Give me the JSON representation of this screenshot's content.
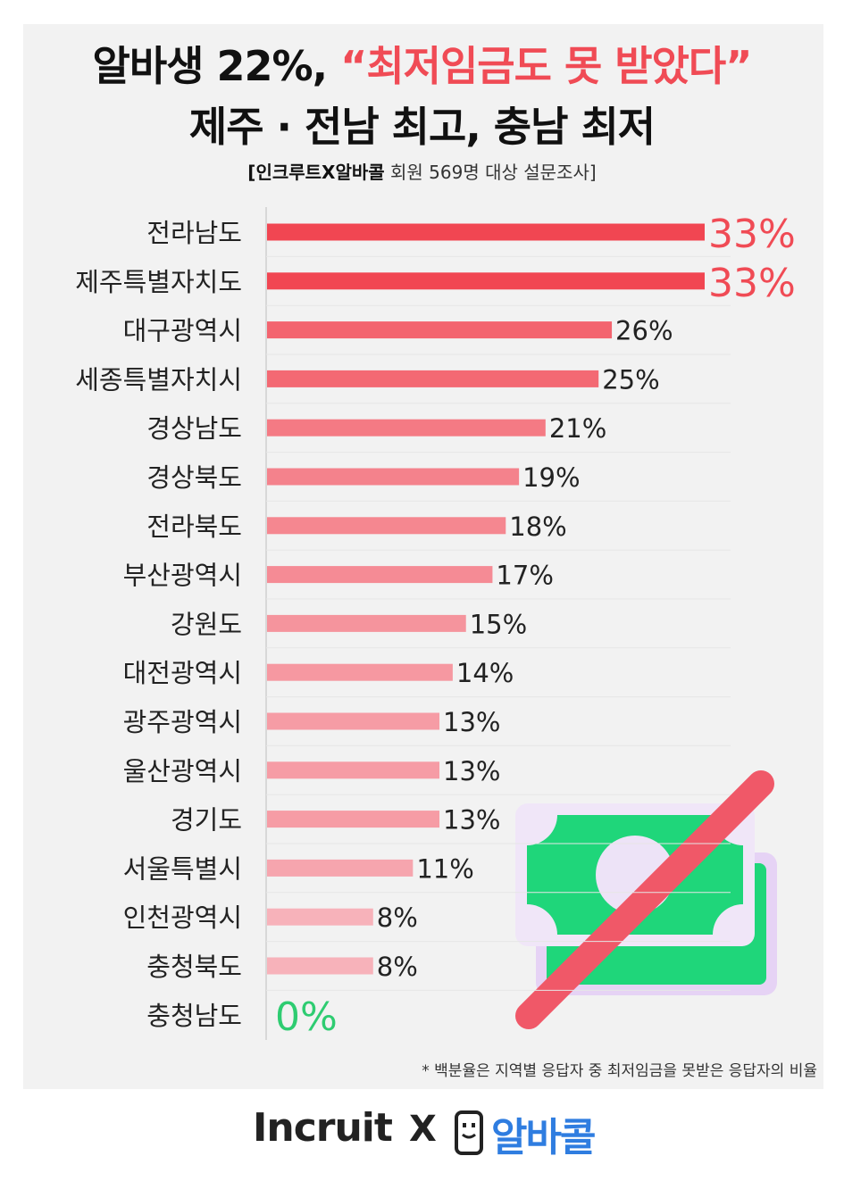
{
  "title": {
    "line1_prefix": "알바생 22%, ",
    "line1_highlight": "“최저임금도 못 받았다”",
    "line2": "제주 · 전남 최고, 충남 최저"
  },
  "subtitle": {
    "source": "[인크루트X알바콜",
    "rest": " 회원 569명 대상 설문조사]"
  },
  "footnote": "* 백분율은 지역별 응답자 중 최저임금을 못받은 응답자의 비율",
  "logos": {
    "incruit": "Incruit",
    "x": "X",
    "albacall": "알바콜"
  },
  "colors": {
    "accent_red": "#f04b55",
    "zero_green": "#2ecc71",
    "money_green": "#1fd67a",
    "strike_red": "#f05868"
  },
  "chart_data": {
    "type": "bar",
    "orientation": "horizontal",
    "unit": "%",
    "xlim": [
      0,
      33
    ],
    "categories": [
      "전라남도",
      "제주특별자치도",
      "대구광역시",
      "세종특별자치시",
      "경상남도",
      "경상북도",
      "전라북도",
      "부산광역시",
      "강원도",
      "대전광역시",
      "광주광역시",
      "울산광역시",
      "경기도",
      "서울특별시",
      "인천광역시",
      "충청북도",
      "충청남도"
    ],
    "values": [
      33,
      33,
      26,
      25,
      21,
      19,
      18,
      17,
      15,
      14,
      13,
      13,
      13,
      11,
      8,
      8,
      0
    ],
    "labels": [
      "33%",
      "33%",
      "26%",
      "25%",
      "21%",
      "19%",
      "18%",
      "17%",
      "15%",
      "14%",
      "13%",
      "13%",
      "13%",
      "11%",
      "8%",
      "8%",
      "0%"
    ]
  }
}
